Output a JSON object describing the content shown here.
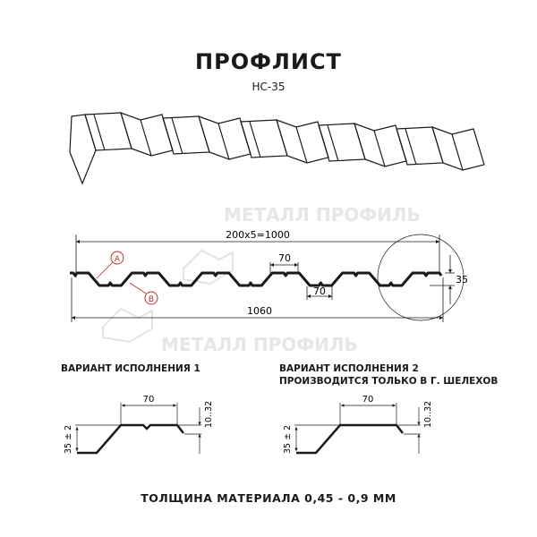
{
  "title": "ПРОФЛИСТ",
  "subtitle": "НС-35",
  "watermark": "МЕТАЛЛ ПРОФИЛЬ",
  "section": {
    "span_label": "200x5=1000",
    "total_label": "1060",
    "top_width": "70",
    "bottom_width": "70",
    "height": "35",
    "marker_a": "A",
    "marker_b": "B"
  },
  "variant1": {
    "label": "ВАРИАНТ ИСПОЛНЕНИЯ 1",
    "width": "70",
    "height": "35 ± 2",
    "lip": "10..32"
  },
  "variant2": {
    "label_line1": "ВАРИАНТ ИСПОЛНЕНИЯ 2",
    "label_line2": "ПРОИЗВОДИТСЯ ТОЛЬКО В Г. ШЕЛЕХОВ",
    "width": "70",
    "height": "35 ± 2",
    "lip": "10..32"
  },
  "thickness": "ТОЛЩИНА МАТЕРИАЛА 0,45 - 0,9 ММ",
  "colors": {
    "marker": "#b5302a",
    "line": "#1a1a1a",
    "watermark": "#e2e2e2"
  }
}
